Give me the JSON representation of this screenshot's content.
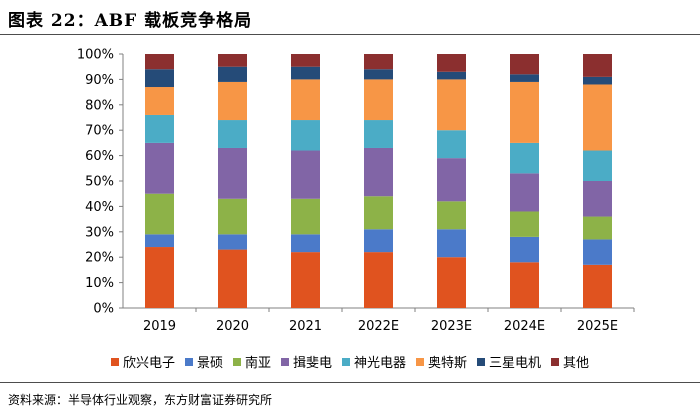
{
  "header": {
    "title": "图表 22：ABF 载板竞争格局"
  },
  "footer": {
    "source": "资料来源：半导体行业观察，东方财富证券研究所"
  },
  "chart_data": {
    "type": "bar",
    "stacked": true,
    "categories": [
      "2019",
      "2020",
      "2021",
      "2022E",
      "2023E",
      "2024E",
      "2025E"
    ],
    "yticks": [
      "0%",
      "10%",
      "20%",
      "30%",
      "40%",
      "50%",
      "60%",
      "70%",
      "80%",
      "90%",
      "100%"
    ],
    "ylim": [
      0,
      100
    ],
    "series": [
      {
        "name": "欣兴电子",
        "color": "#e0531f",
        "values": [
          24,
          23,
          22,
          22,
          20,
          18,
          17
        ]
      },
      {
        "name": "景硕",
        "color": "#4b7ac9",
        "values": [
          5,
          6,
          7,
          9,
          11,
          10,
          10
        ]
      },
      {
        "name": "南亚",
        "color": "#8db248",
        "values": [
          16,
          14,
          14,
          13,
          11,
          10,
          9
        ]
      },
      {
        "name": "揖斐电",
        "color": "#8165a6",
        "values": [
          20,
          20,
          19,
          19,
          17,
          15,
          14
        ]
      },
      {
        "name": "神光电器",
        "color": "#4bacc6",
        "values": [
          11,
          11,
          12,
          11,
          11,
          12,
          12
        ]
      },
      {
        "name": "奥特斯",
        "color": "#f79646",
        "values": [
          11,
          15,
          16,
          16,
          20,
          24,
          26
        ]
      },
      {
        "name": "三星电机",
        "color": "#254b78",
        "values": [
          7,
          6,
          5,
          4,
          3,
          3,
          3
        ]
      },
      {
        "name": "其他",
        "color": "#8b2f2f",
        "values": [
          6,
          5,
          5,
          6,
          7,
          8,
          9
        ]
      }
    ]
  }
}
